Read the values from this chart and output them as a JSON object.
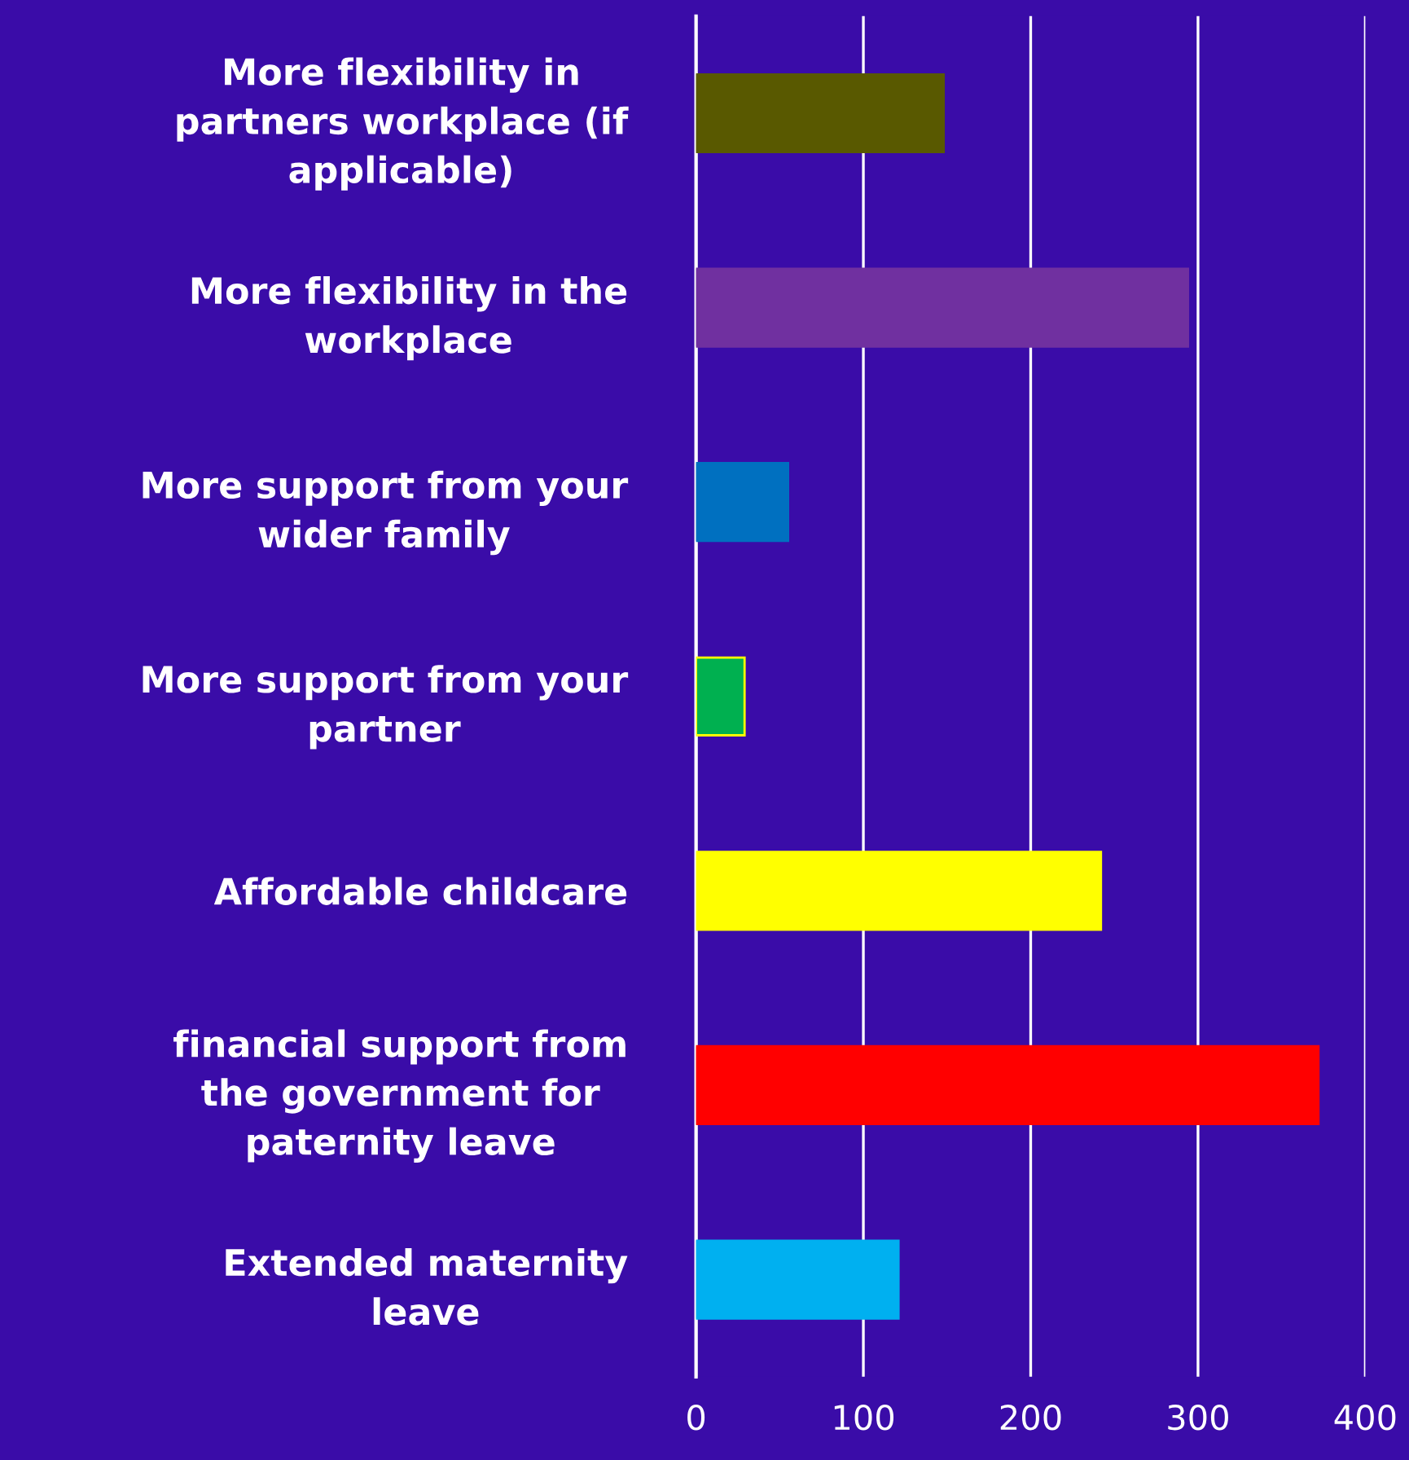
{
  "chart_data": {
    "type": "bar",
    "orientation": "horizontal",
    "categories": [
      "More flexibility in\npartners workplace (if\napplicable)",
      "More flexibility in the\nworkplace",
      "More support from your\nwider family",
      "More support from your\npartner",
      "Affordable childcare",
      "financial support from\nthe government for\npaternity leave",
      "Extended maternity\nleave"
    ],
    "values": [
      148,
      294,
      55,
      29,
      242,
      372,
      121
    ],
    "colors": [
      "#595900",
      "#7030a0",
      "#0070c0",
      "#00b050",
      "#ffff00",
      "#ff0000",
      "#00b0f0"
    ],
    "xlim": [
      0,
      400
    ],
    "xticks": [
      0,
      100,
      200,
      300,
      400
    ],
    "grid": "x"
  }
}
